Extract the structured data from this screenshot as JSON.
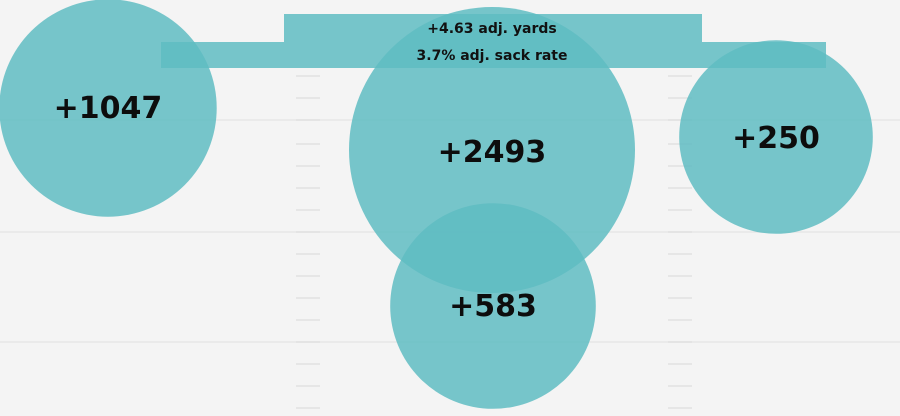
{
  "chart_data": {
    "type": "bubble",
    "title": "",
    "grid": true,
    "colors": {
      "bubble": "#5fbcc2",
      "bar": "#5fbcc2",
      "background": "#f4f4f4",
      "grid": "#e6e6e6",
      "text": "#0d0d0d"
    },
    "bubbles": [
      {
        "label": "+1047",
        "value": 1047
      },
      {
        "label": "+2493",
        "value": 2493
      },
      {
        "label": "+250",
        "value": 250
      },
      {
        "label": "+583",
        "value": 583
      }
    ],
    "bars": [
      {
        "label": "+4.63 adj. yards"
      },
      {
        "label": "3.7% adj. sack rate"
      }
    ]
  }
}
